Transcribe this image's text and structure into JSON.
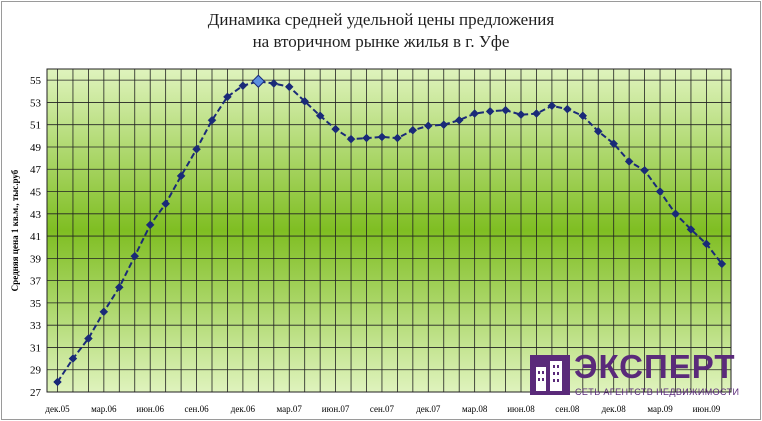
{
  "chart_data": {
    "type": "line",
    "title_line1": "Динамика средней удельной цены предложения",
    "title_line2": "на вторичном рынке жилья в г. Уфе",
    "ylabel": "Средняя цена 1 кв.м., тыс.руб",
    "xlabel": "",
    "ylim": [
      27,
      56
    ],
    "yticks": [
      27,
      29,
      31,
      33,
      35,
      37,
      39,
      41,
      43,
      45,
      47,
      49,
      51,
      53,
      55
    ],
    "grid": true,
    "legend": "none",
    "x_tick_labels": [
      "дек.05",
      "мар.06",
      "июн.06",
      "сен.06",
      "дек.06",
      "мар.07",
      "июн.07",
      "сен.07",
      "дек.07",
      "мар.08",
      "июн.08",
      "сен.08",
      "дек.08",
      "мар.09",
      "июн.09"
    ],
    "x_months": [
      "дек.05",
      "янв.06",
      "фев.06",
      "мар.06",
      "апр.06",
      "май.06",
      "июн.06",
      "июл.06",
      "авг.06",
      "сен.06",
      "окт.06",
      "ноя.06",
      "дек.06",
      "янв.07",
      "фев.07",
      "мар.07",
      "апр.07",
      "май.07",
      "июн.07",
      "июл.07",
      "авг.07",
      "сен.07",
      "окт.07",
      "ноя.07",
      "дек.07",
      "янв.08",
      "фев.08",
      "мар.08",
      "апр.08",
      "май.08",
      "июн.08",
      "июл.08",
      "авг.08",
      "сен.08",
      "окт.08",
      "ноя.08",
      "дек.08",
      "янв.09",
      "фев.09",
      "мар.09",
      "апр.09",
      "май.09",
      "июн.09",
      "июл.09"
    ],
    "series": [
      {
        "values": [
          27.9,
          30.0,
          31.8,
          34.2,
          36.4,
          39.2,
          42.0,
          43.9,
          46.4,
          48.8,
          51.4,
          53.5,
          54.5,
          54.9,
          54.7,
          54.4,
          53.1,
          51.8,
          50.6,
          49.7,
          49.8,
          49.9,
          49.8,
          50.5,
          50.9,
          51.0,
          51.4,
          52.0,
          52.2,
          52.3,
          51.9,
          52.0,
          52.7,
          52.4,
          51.8,
          50.4,
          49.3,
          47.7,
          46.9,
          45.0,
          43.0,
          41.6,
          40.3,
          38.5
        ],
        "color": "#1a2a78",
        "highlight_index": 13,
        "highlight_color": "#5b8fe0"
      }
    ],
    "plot_colors": {
      "edge": "#d6eeb0",
      "center": "#79bb1e",
      "grid": "#222222"
    }
  },
  "logo": {
    "word": "ЭКСПЕРТ",
    "subtitle": "СЕТЬ АГЕНТСТВ НЕДВИЖИМОСТИ",
    "color": "#5a2a7a",
    "icon": "building-icon"
  }
}
